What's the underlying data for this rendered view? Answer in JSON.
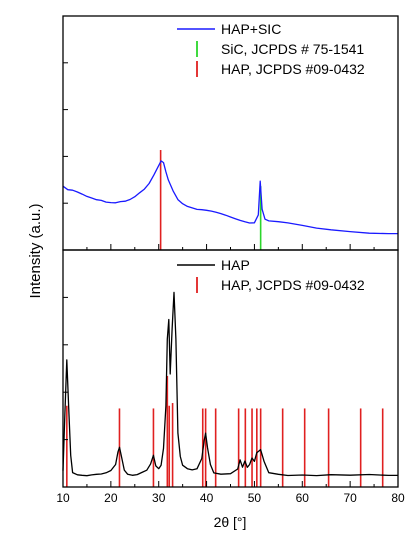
{
  "chart_data": [
    {
      "type": "line",
      "panel": "top",
      "xlim": [
        10,
        80
      ],
      "ylabel_shared": "Intensity (a.u.)",
      "grid": false,
      "legend_position": "top-right",
      "series": [
        {
          "name": "HAP+SIC",
          "color": "#1a1aff",
          "x": [
            10,
            11,
            12,
            13,
            14,
            15,
            16,
            17,
            18,
            19,
            20,
            21,
            22,
            23,
            24,
            25,
            26,
            27,
            28,
            29,
            30,
            30.5,
            31,
            31.5,
            32,
            33,
            34,
            35,
            36,
            37,
            38,
            39,
            40,
            41,
            42,
            43,
            44,
            45,
            46,
            47,
            48,
            49,
            50,
            50.8,
            51.2,
            51.6,
            52.2,
            53,
            55,
            57,
            60,
            63,
            66,
            70,
            74,
            78,
            80
          ],
          "y": [
            60,
            56,
            55,
            53,
            51,
            49,
            48,
            47,
            47,
            46,
            46,
            46,
            47,
            47,
            48,
            50,
            53,
            56,
            61,
            69,
            78,
            83,
            82,
            74,
            67,
            57,
            49,
            45,
            42,
            40,
            38,
            37,
            36,
            35,
            34,
            33,
            32,
            31,
            30,
            29,
            28,
            27,
            27,
            34,
            65,
            38,
            28,
            26,
            25,
            24,
            22,
            20,
            19,
            18,
            17,
            17,
            17
          ]
        }
      ],
      "reference_lines": [
        {
          "name": "SiC, JCPDS # 75-1541",
          "color": "#2bd62b",
          "positions": [
            51.3
          ]
        },
        {
          "name": "HAP, JCPDS #09-0432",
          "color": "#e02020",
          "positions": [
            30.4
          ]
        }
      ]
    },
    {
      "type": "line",
      "panel": "bottom",
      "xlim": [
        10,
        80
      ],
      "xlabel": "2θ [°]",
      "xticks": [
        10,
        20,
        30,
        40,
        50,
        60,
        70,
        80
      ],
      "grid": false,
      "legend_position": "top-right",
      "series": [
        {
          "name": "HAP",
          "color": "#000000",
          "x": [
            10,
            10.4,
            10.8,
            11.2,
            11.6,
            12,
            13,
            14,
            15,
            16,
            17,
            18,
            19,
            20,
            21,
            21.5,
            21.8,
            22.2,
            22.8,
            23.5,
            24.5,
            25.5,
            26.5,
            27.5,
            28.3,
            28.9,
            29.4,
            30,
            30.5,
            31,
            31.5,
            31.8,
            32.1,
            32.4,
            32.8,
            33.2,
            33.6,
            34,
            34.5,
            35,
            36,
            37,
            38,
            39,
            39.5,
            39.8,
            40.2,
            40.8,
            41.5,
            43,
            45,
            46.5,
            47,
            47.5,
            48,
            48.5,
            49,
            49.5,
            50,
            50.5,
            51.3,
            52,
            53,
            55,
            57,
            60,
            63,
            66,
            70,
            74,
            78,
            80
          ],
          "y": [
            12,
            55,
            95,
            60,
            25,
            12,
            10,
            9,
            8,
            8,
            8,
            8,
            9,
            11,
            16,
            26,
            30,
            24,
            14,
            11,
            10,
            10,
            11,
            12,
            16,
            22,
            14,
            12,
            15,
            28,
            60,
            110,
            125,
            85,
            118,
            145,
            110,
            40,
            22,
            15,
            12,
            11,
            12,
            20,
            34,
            40,
            30,
            18,
            12,
            11,
            11,
            14,
            20,
            14,
            18,
            13,
            15,
            20,
            18,
            25,
            28,
            20,
            12,
            11,
            10,
            10,
            9,
            9,
            8,
            8,
            7,
            7
          ]
        }
      ],
      "reference_lines": [
        {
          "name": "HAP, JCPDS #09-0432",
          "color": "#e02020",
          "positions": [
            10.8,
            21.8,
            28.9,
            31.8,
            32.2,
            32.9,
            39.2,
            39.8,
            41.9,
            46.7,
            48.1,
            49.5,
            50.5,
            51.3,
            55.9,
            60.5,
            65.5,
            72.2,
            76.8
          ],
          "heights": [
            60,
            58,
            58,
            82,
            60,
            62,
            58,
            58,
            58,
            58,
            58,
            58,
            58,
            58,
            58,
            58,
            58,
            58,
            58
          ]
        }
      ]
    }
  ]
}
